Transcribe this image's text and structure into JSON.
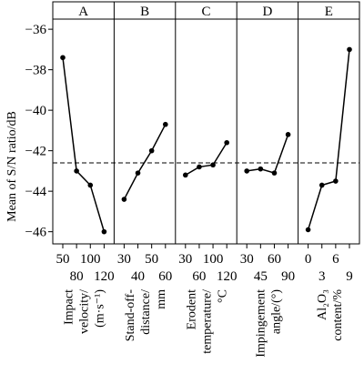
{
  "chart_data": {
    "type": "line",
    "ylabel": "Mean of S/N ratio/dB",
    "ylim": [
      -46.6,
      -35.5
    ],
    "yticks": [
      -36,
      -38,
      -40,
      -42,
      -44,
      -46
    ],
    "reference_line": {
      "value": -42.6,
      "style": "dashed"
    },
    "grid": false,
    "panels": [
      {
        "label": "A",
        "factor_lines": [
          "Impact",
          "velocity/",
          "(m·s⁻¹)"
        ],
        "tick_labels": [
          "50",
          "80",
          "100",
          "120"
        ],
        "values": [
          -37.4,
          -43.0,
          -43.7,
          -46.0
        ]
      },
      {
        "label": "B",
        "factor_lines": [
          "Stand-off-",
          "distance/",
          "mm"
        ],
        "tick_labels": [
          "30",
          "40",
          "50",
          "60"
        ],
        "values": [
          -44.4,
          -43.1,
          -42.0,
          -40.7
        ]
      },
      {
        "label": "C",
        "factor_lines": [
          "Erodent",
          "temperature/",
          "°C"
        ],
        "tick_labels": [
          "30",
          "60",
          "100",
          "120"
        ],
        "values": [
          -43.2,
          -42.8,
          -42.7,
          -41.6
        ]
      },
      {
        "label": "D",
        "factor_lines": [
          "Impingement",
          "angle/(°)"
        ],
        "tick_labels": [
          "30",
          "45",
          "60",
          "90"
        ],
        "values": [
          -43.0,
          -42.9,
          -43.1,
          -41.2
        ]
      },
      {
        "label": "E",
        "factor_lines": [
          "Al₂O₃",
          "content/%"
        ],
        "tick_labels": [
          "0",
          "3",
          "6",
          "9"
        ],
        "values": [
          -45.9,
          -43.7,
          -43.5,
          -37.0
        ]
      }
    ]
  }
}
